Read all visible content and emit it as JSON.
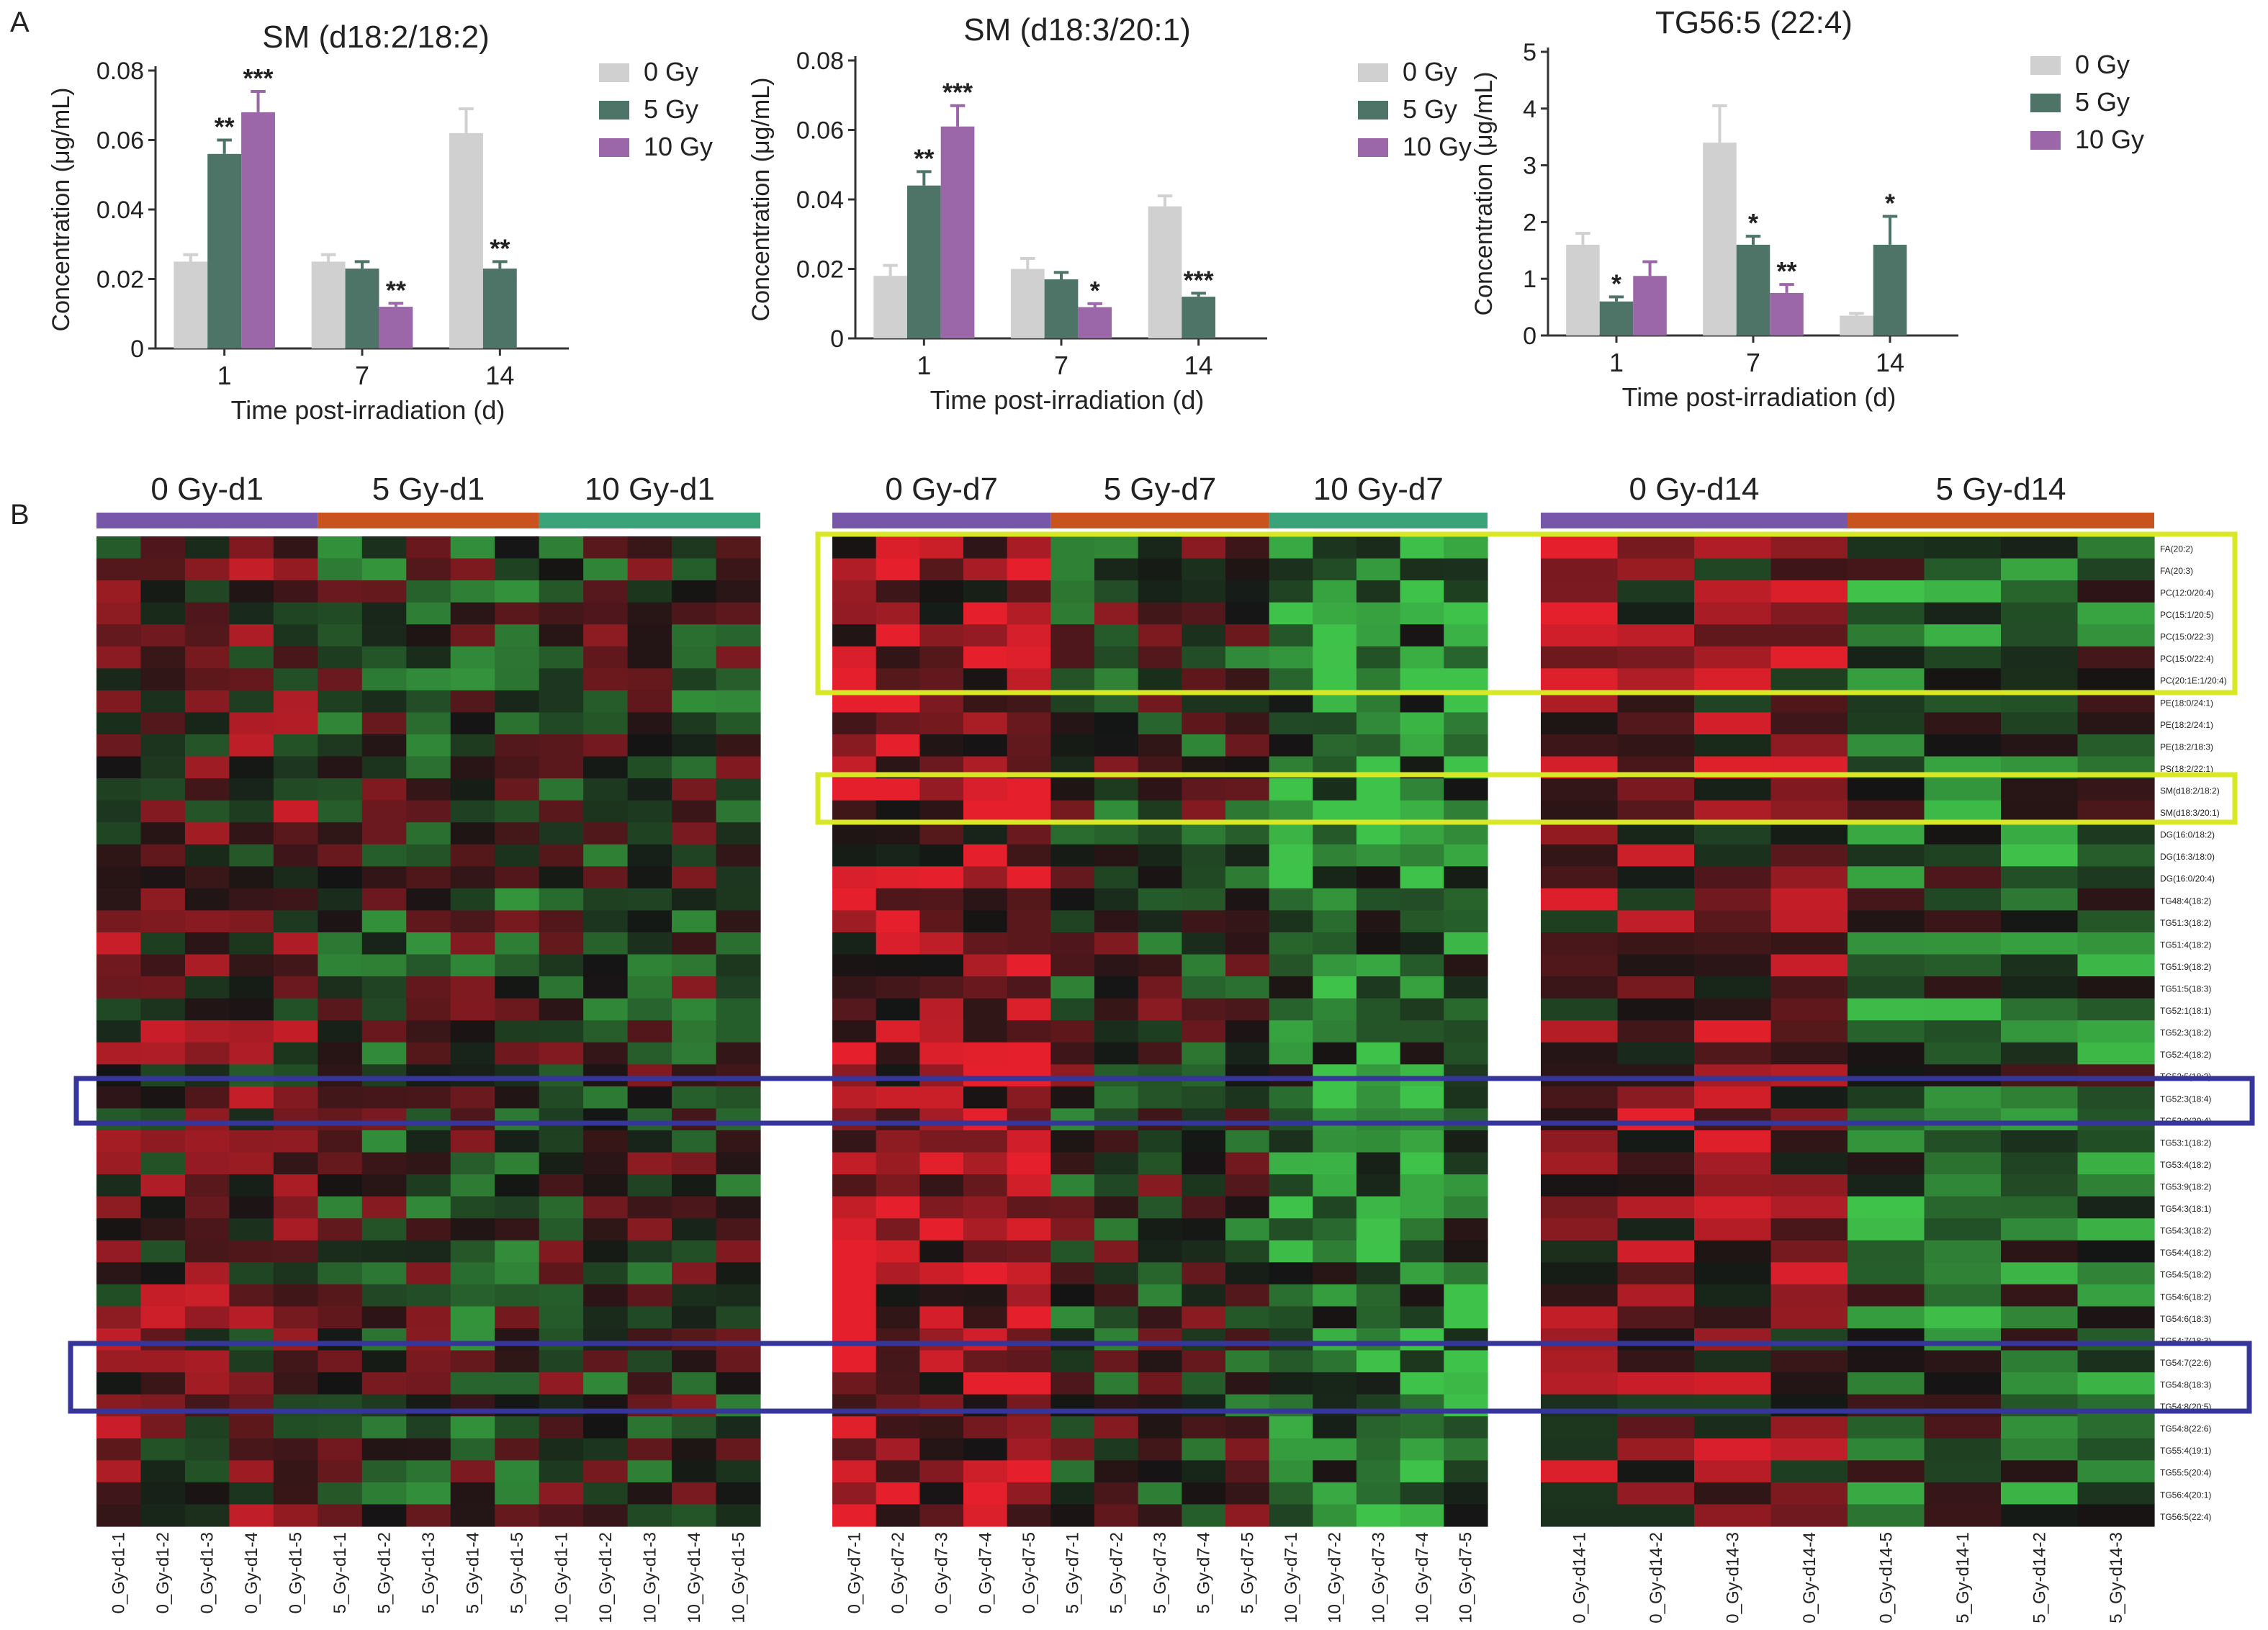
{
  "figure": {
    "panel_labels": [
      "A",
      "B"
    ]
  },
  "colors": {
    "gy0": "#d0d0d0",
    "gy5": "#4d7466",
    "gy10": "#9b67a8",
    "axis": "#333333",
    "heat_red": "#e5202c",
    "heat_black": "#141414",
    "heat_green": "#3fc24a",
    "bar_purple": "#7657a8",
    "bar_orange": "#c8531e",
    "bar_teal": "#3aa37a",
    "yellow_box": "#d9e826",
    "blue_box": "#35359a"
  },
  "chart_data": [
    {
      "type": "bar",
      "title": "SM (d18:2/18:2)",
      "xlabel": "Time post-irradiation (d)",
      "ylabel": "Concentration (μg/mL)",
      "categories": [
        "1",
        "7",
        "14"
      ],
      "ylim": [
        0,
        0.08
      ],
      "yticks": [
        "0",
        "0.02",
        "0.04",
        "0.06",
        "0.08"
      ],
      "series": [
        {
          "name": "0 Gy",
          "values": [
            0.025,
            0.025,
            0.062
          ],
          "errors": [
            0.002,
            0.002,
            0.007
          ]
        },
        {
          "name": "5 Gy",
          "values": [
            0.056,
            0.023,
            0.023
          ],
          "errors": [
            0.004,
            0.002,
            0.002
          ]
        },
        {
          "name": "10 Gy",
          "values": [
            0.068,
            0.012,
            null
          ],
          "errors": [
            0.006,
            0.001,
            null
          ]
        }
      ],
      "annotations": [
        {
          "series": 1,
          "category": 0,
          "text": "**"
        },
        {
          "series": 2,
          "category": 0,
          "text": "***"
        },
        {
          "series": 2,
          "category": 1,
          "text": "**"
        },
        {
          "series": 1,
          "category": 2,
          "text": "**"
        }
      ],
      "legend": "top-right"
    },
    {
      "type": "bar",
      "title": "SM (d18:3/20:1)",
      "xlabel": "Time post-irradiation (d)",
      "ylabel": "Concentration (μg/mL)",
      "categories": [
        "1",
        "7",
        "14"
      ],
      "ylim": [
        0,
        0.08
      ],
      "yticks": [
        "0",
        "0.02",
        "0.04",
        "0.06",
        "0.08"
      ],
      "series": [
        {
          "name": "0 Gy",
          "values": [
            0.018,
            0.02,
            0.038
          ],
          "errors": [
            0.003,
            0.003,
            0.003
          ]
        },
        {
          "name": "5 Gy",
          "values": [
            0.044,
            0.017,
            0.012
          ],
          "errors": [
            0.004,
            0.002,
            0.001
          ]
        },
        {
          "name": "10 Gy",
          "values": [
            0.061,
            0.009,
            null
          ],
          "errors": [
            0.006,
            0.001,
            null
          ]
        }
      ],
      "annotations": [
        {
          "series": 1,
          "category": 0,
          "text": "**"
        },
        {
          "series": 2,
          "category": 0,
          "text": "***"
        },
        {
          "series": 2,
          "category": 1,
          "text": "*"
        },
        {
          "series": 1,
          "category": 2,
          "text": "***"
        }
      ],
      "legend": "top-right"
    },
    {
      "type": "bar",
      "title": "TG56:5 (22:4)",
      "xlabel": "Time post-irradiation (d)",
      "ylabel": "Concentration (μg/mL)",
      "categories": [
        "1",
        "7",
        "14"
      ],
      "ylim": [
        0,
        5
      ],
      "yticks": [
        "0",
        "1",
        "2",
        "3",
        "4",
        "5"
      ],
      "series": [
        {
          "name": "0 Gy",
          "values": [
            1.6,
            3.4,
            0.35
          ],
          "errors": [
            0.2,
            0.65,
            0.04
          ]
        },
        {
          "name": "5 Gy",
          "values": [
            0.6,
            1.6,
            1.6
          ],
          "errors": [
            0.08,
            0.15,
            0.5
          ]
        },
        {
          "name": "10 Gy",
          "values": [
            1.05,
            0.75,
            null
          ],
          "errors": [
            0.25,
            0.15,
            null
          ]
        }
      ],
      "annotations": [
        {
          "series": 1,
          "category": 0,
          "text": "*"
        },
        {
          "series": 1,
          "category": 1,
          "text": "*"
        },
        {
          "series": 2,
          "category": 1,
          "text": "**"
        },
        {
          "series": 1,
          "category": 2,
          "text": "*"
        }
      ],
      "legend": "top-right"
    },
    {
      "type": "heatmap",
      "groups": [
        "0 Gy-d1",
        "5 Gy-d1",
        "10 Gy-d1"
      ],
      "columns": [
        "0_Gy-d1-1",
        "0_Gy-d1-2",
        "0_Gy-d1-3",
        "0_Gy-d1-4",
        "0_Gy-d1-5",
        "5_Gy-d1-1",
        "5_Gy-d1-2",
        "5_Gy-d1-3",
        "5_Gy-d1-4",
        "5_Gy-d1-5",
        "10_Gy-d1-1",
        "10_Gy-d1-2",
        "10_Gy-d1-3",
        "10_Gy-d1-4",
        "10_Gy-d1-5"
      ]
    },
    {
      "type": "heatmap",
      "groups": [
        "0 Gy-d7",
        "5 Gy-d7",
        "10 Gy-d7"
      ],
      "columns": [
        "0_Gy-d7-1",
        "0_Gy-d7-2",
        "0_Gy-d7-3",
        "0_Gy-d7-4",
        "0_Gy-d7-5",
        "5_Gy-d7-1",
        "5_Gy-d7-2",
        "5_Gy-d7-3",
        "5_Gy-d7-4",
        "5_Gy-d7-5",
        "10_Gy-d7-1",
        "10_Gy-d7-2",
        "10_Gy-d7-3",
        "10_Gy-d7-4",
        "10_Gy-d7-5"
      ]
    },
    {
      "type": "heatmap",
      "groups": [
        "0 Gy-d14",
        "5 Gy-d14"
      ],
      "columns": [
        "0_Gy-d14-1",
        "0_Gy-d14-2",
        "0_Gy-d14-3",
        "0_Gy-d14-4",
        "0_Gy-d14-5",
        "5_Gy-d14-1",
        "5_Gy-d14-2",
        "5_Gy-d14-3"
      ],
      "rows": [
        "FA(20:2)",
        "FA(20:3)",
        "PC(12:0/20:4)",
        "PC(15:1/20:5)",
        "PC(15:0/22:3)",
        "PC(15:0/22:4)",
        "PC(20:1E:1/20:4)",
        "PE(18:0/24:1)",
        "PE(18:2/24:1)",
        "PE(18:2/18:3)",
        "PS(18:2/22:1)",
        "SM(d18:2/18:2)",
        "SM(d18:3/20:1)",
        "DG(16:0/18:2)",
        "DG(16:3/18:0)",
        "DG(16:0/20:4)",
        "TG48:4(18:2)",
        "TG51:3(18:2)",
        "TG51:4(18:2)",
        "TG51:9(18:2)",
        "TG51:5(18:3)",
        "TG52:1(18:1)",
        "TG52:3(18:2)",
        "TG52:4(18:2)",
        "TG52:5(18:3)",
        "TG52:3(18:4)",
        "TG52:0(20:4)",
        "TG53:1(18:2)",
        "TG53:4(18:2)",
        "TG53:9(18:2)",
        "TG54:3(18:1)",
        "TG54:3(18:2)",
        "TG54:4(18:2)",
        "TG54:5(18:2)",
        "TG54:6(18:2)",
        "TG54:6(18:3)",
        "TG54:7(18:3)",
        "TG54:7(22:6)",
        "TG54:8(18:3)",
        "TG54:8(20:5)",
        "TG54:8(22:6)",
        "TG55:4(19:1)",
        "TG55:5(20:4)",
        "TG56:4(20:1)",
        "TG56:5(22:4)"
      ]
    }
  ]
}
